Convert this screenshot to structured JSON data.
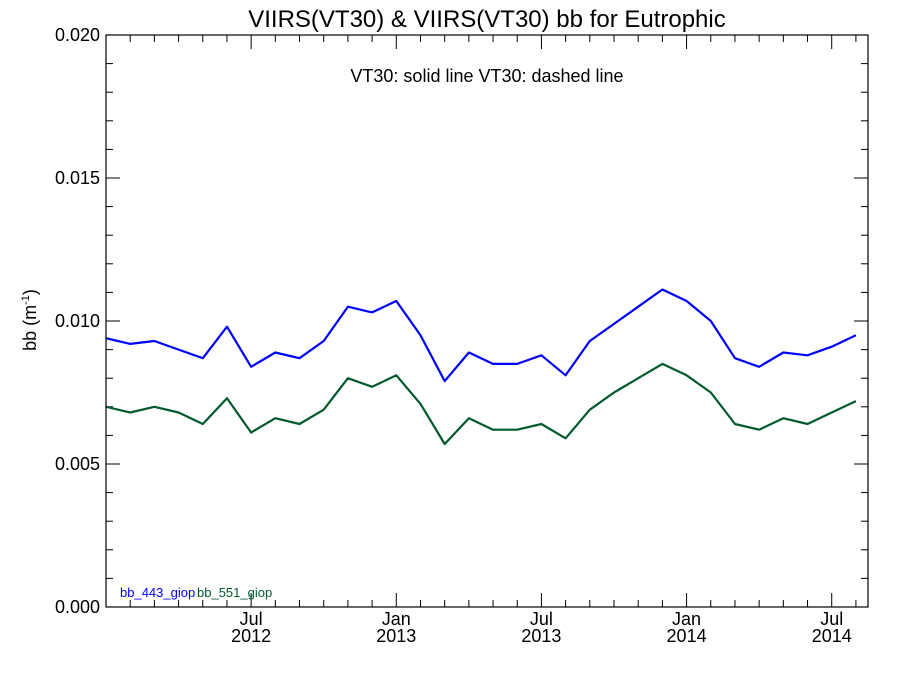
{
  "chart_data": {
    "type": "line",
    "title": "VIIRS(VT30) & VIIRS(VT30)  bb for Eutrophic",
    "annotation": "VT30: solid line   VT30: dashed line",
    "ylabel_base": "bb (m",
    "ylabel_sup": "-1",
    "ylabel_close": ")",
    "xlabel": "",
    "ylim": [
      0.0,
      0.02
    ],
    "yticks": [
      "0.000",
      "0.005",
      "0.010",
      "0.015",
      "0.020"
    ],
    "xticks": [
      {
        "month": "Jul",
        "year": "2012"
      },
      {
        "month": "Jan",
        "year": "2013"
      },
      {
        "month": "Jul",
        "year": "2013"
      },
      {
        "month": "Jan",
        "year": "2014"
      },
      {
        "month": "Jul",
        "year": "2014"
      }
    ],
    "x": [
      "2012-01",
      "2012-02",
      "2012-03",
      "2012-04",
      "2012-05",
      "2012-06",
      "2012-07",
      "2012-08",
      "2012-09",
      "2012-10",
      "2012-11",
      "2012-12",
      "2013-01",
      "2013-02",
      "2013-03",
      "2013-04",
      "2013-05",
      "2013-06",
      "2013-07",
      "2013-08",
      "2013-09",
      "2013-10",
      "2013-11",
      "2013-12",
      "2014-01",
      "2014-02",
      "2014-03",
      "2014-04",
      "2014-05",
      "2014-06",
      "2014-07",
      "2014-08"
    ],
    "series": [
      {
        "name": "bb_443_giop",
        "color": "#0000ff",
        "values": [
          0.0094,
          0.0092,
          0.0093,
          0.009,
          0.0087,
          0.0098,
          0.0084,
          0.0089,
          0.0087,
          0.0093,
          0.0105,
          0.0103,
          0.0107,
          0.0095,
          0.0079,
          0.0089,
          0.0085,
          0.0085,
          0.0088,
          0.0081,
          0.0093,
          0.0099,
          0.0105,
          0.0111,
          0.0107,
          0.01,
          0.0087,
          0.0084,
          0.0089,
          0.0088,
          0.0091,
          0.0095
        ]
      },
      {
        "name": "bb_551_giop",
        "color": "#005a2e",
        "values": [
          0.007,
          0.0068,
          0.007,
          0.0068,
          0.0064,
          0.0073,
          0.0061,
          0.0066,
          0.0064,
          0.0069,
          0.008,
          0.0077,
          0.0081,
          0.0071,
          0.0057,
          0.0066,
          0.0062,
          0.0062,
          0.0064,
          0.0059,
          0.0069,
          0.0075,
          0.008,
          0.0085,
          0.0081,
          0.0075,
          0.0064,
          0.0062,
          0.0066,
          0.0064,
          0.0068,
          0.0072
        ]
      }
    ]
  }
}
